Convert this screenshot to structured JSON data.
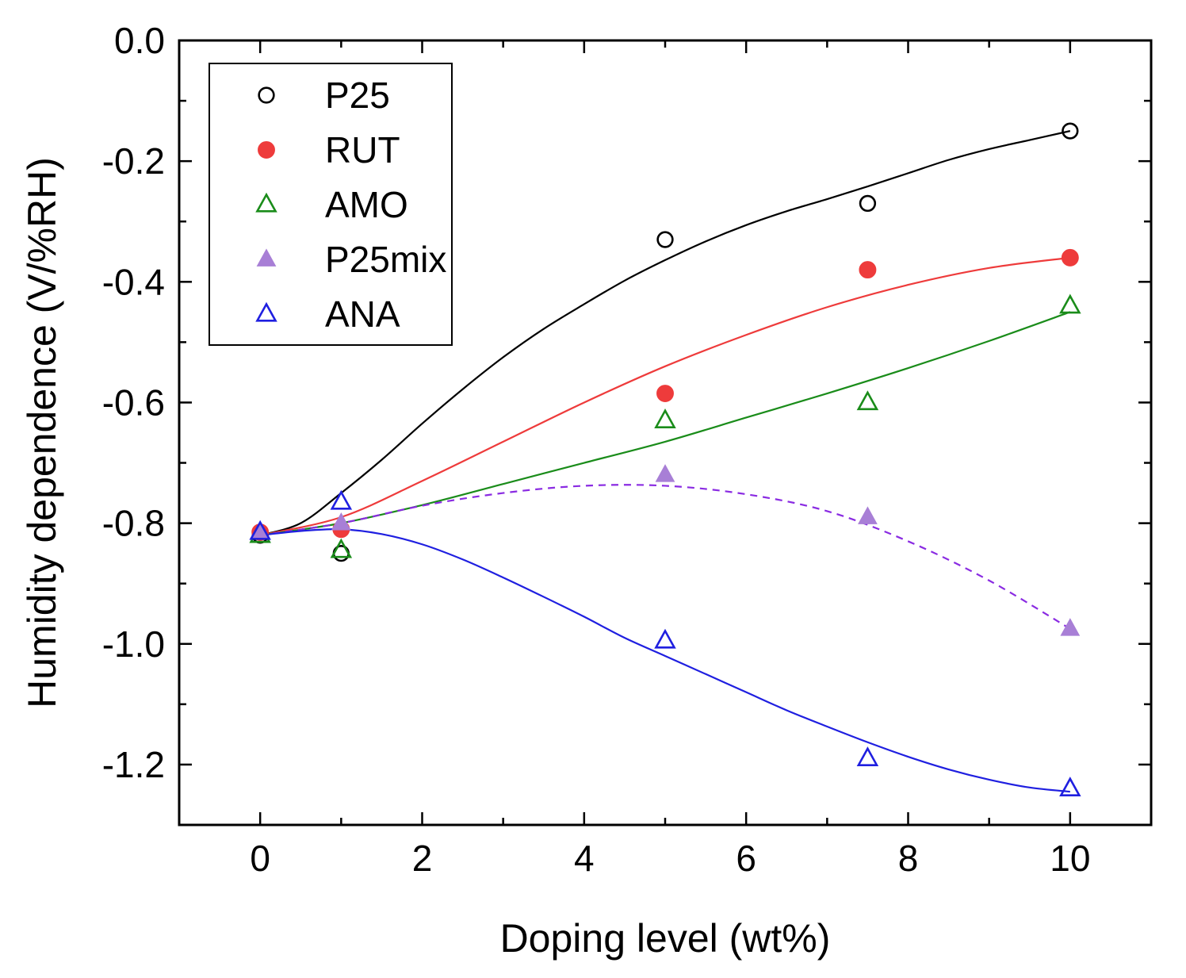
{
  "chart_data": {
    "type": "scatter",
    "title": "",
    "xlabel": "Doping level (wt%)",
    "ylabel": "Humidity dependence (V/%RH)",
    "xlim": [
      -1,
      11
    ],
    "ylim": [
      -1.3,
      0.0
    ],
    "xticks": [
      0,
      2,
      4,
      6,
      8,
      10
    ],
    "xtick_labels": [
      "0",
      "2",
      "4",
      "6",
      "8",
      "10"
    ],
    "yticks": [
      0.0,
      -0.2,
      -0.4,
      -0.6,
      -0.8,
      -1.0,
      -1.2
    ],
    "ytick_labels": [
      "0.0",
      "-0.2",
      "-0.4",
      "-0.6",
      "-0.8",
      "-1.0",
      "-1.2"
    ],
    "grid": false,
    "legend_position": "top-left",
    "series": [
      {
        "name": "P25",
        "marker": "circle-open",
        "color": "#000000",
        "fit_style": "solid",
        "x": [
          0,
          1,
          5,
          7.5,
          10
        ],
        "y": [
          -0.82,
          -0.85,
          -0.33,
          -0.27,
          -0.15
        ],
        "fit_x": [
          0,
          0.5,
          1,
          1.5,
          2,
          2.5,
          3,
          3.5,
          4,
          4.5,
          5,
          5.5,
          6,
          6.5,
          7,
          7.5,
          8,
          8.5,
          9,
          9.5,
          10
        ],
        "fit_y": [
          -0.82,
          -0.8,
          -0.75,
          -0.695,
          -0.635,
          -0.578,
          -0.525,
          -0.478,
          -0.437,
          -0.398,
          -0.364,
          -0.333,
          -0.306,
          -0.283,
          -0.263,
          -0.242,
          -0.22,
          -0.198,
          -0.18,
          -0.165,
          -0.15
        ]
      },
      {
        "name": "RUT",
        "marker": "circle-filled",
        "color": "#ee3b3b",
        "fit_style": "solid",
        "x": [
          0,
          1,
          5,
          7.5,
          10
        ],
        "y": [
          -0.815,
          -0.81,
          -0.585,
          -0.38,
          -0.36
        ],
        "fit_x": [
          0,
          1,
          2,
          3,
          4,
          5,
          6,
          7,
          8,
          9,
          10
        ],
        "fit_y": [
          -0.82,
          -0.79,
          -0.73,
          -0.665,
          -0.6,
          -0.54,
          -0.488,
          -0.442,
          -0.405,
          -0.377,
          -0.36
        ]
      },
      {
        "name": "AMO",
        "marker": "triangle-open",
        "color": "#1a8c1a",
        "fit_style": "solid",
        "x": [
          0,
          1,
          5,
          7.5,
          10
        ],
        "y": [
          -0.82,
          -0.845,
          -0.63,
          -0.6,
          -0.44
        ],
        "fit_x": [
          0,
          1,
          2,
          3,
          4,
          5,
          6,
          7,
          8,
          9,
          10
        ],
        "fit_y": [
          -0.82,
          -0.8,
          -0.77,
          -0.735,
          -0.7,
          -0.665,
          -0.625,
          -0.585,
          -0.543,
          -0.498,
          -0.45
        ]
      },
      {
        "name": "P25mix",
        "marker": "triangle-filled",
        "color": "#a87fd6",
        "line_color": "#8a2be2",
        "fit_style": "dashed",
        "x": [
          0,
          1,
          5,
          7.5,
          10
        ],
        "y": [
          -0.815,
          -0.8,
          -0.72,
          -0.79,
          -0.975
        ],
        "fit_x": [
          0,
          1,
          2,
          3,
          4,
          5,
          6,
          7,
          8,
          9,
          10
        ],
        "fit_y": [
          -0.82,
          -0.8,
          -0.771,
          -0.75,
          -0.738,
          -0.738,
          -0.752,
          -0.78,
          -0.83,
          -0.895,
          -0.975
        ]
      },
      {
        "name": "ANA",
        "marker": "triangle-open",
        "color": "#1f1fe0",
        "fit_style": "solid",
        "x": [
          0,
          1,
          5,
          7.5,
          10
        ],
        "y": [
          -0.815,
          -0.765,
          -0.995,
          -1.19,
          -1.24
        ],
        "fit_x": [
          0,
          0.5,
          1,
          1.5,
          2,
          2.5,
          3,
          3.5,
          4,
          4.5,
          5,
          5.5,
          6,
          6.5,
          7,
          7.5,
          8,
          8.5,
          9,
          9.5,
          10
        ],
        "fit_y": [
          -0.82,
          -0.813,
          -0.81,
          -0.818,
          -0.835,
          -0.86,
          -0.89,
          -0.922,
          -0.955,
          -0.99,
          -1.02,
          -1.05,
          -1.08,
          -1.11,
          -1.137,
          -1.163,
          -1.187,
          -1.208,
          -1.225,
          -1.238,
          -1.245
        ]
      }
    ]
  }
}
